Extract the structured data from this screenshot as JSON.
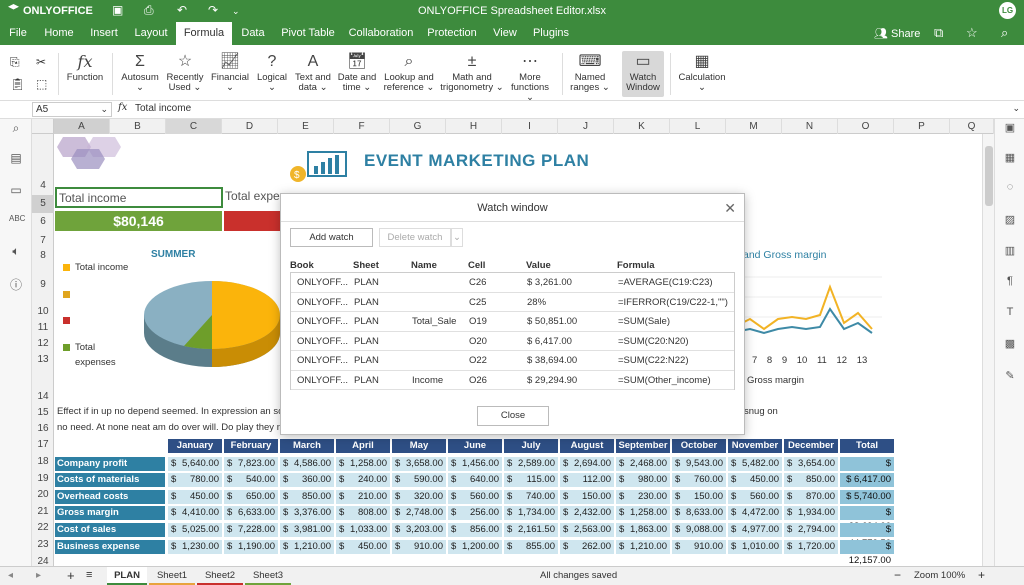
{
  "app": {
    "logo": "ONLYOFFICE",
    "title": "ONLYOFFICE Spreadsheet Editor.xlsx",
    "avatar": "LG"
  },
  "menu": {
    "tabs": [
      "File",
      "Home",
      "Insert",
      "Layout",
      "Formula",
      "Data",
      "Pivot Table",
      "Collaboration",
      "Protection",
      "View",
      "Plugins"
    ],
    "active": "Formula",
    "share": "Share"
  },
  "toolbar": {
    "function": "Function",
    "autosum": [
      "Autosum",
      "⌄"
    ],
    "recently_used": [
      "Recently",
      "Used ⌄"
    ],
    "financial": [
      "Financial",
      "⌄"
    ],
    "logical": [
      "Logical",
      "⌄"
    ],
    "text_data": [
      "Text and",
      "data ⌄"
    ],
    "date_time": [
      "Date and",
      "time ⌄"
    ],
    "lookup": [
      "Lookup and",
      "reference ⌄"
    ],
    "math": [
      "Math and",
      "trigonometry ⌄"
    ],
    "more": [
      "More",
      "functions ⌄"
    ],
    "named": [
      "Named",
      "ranges ⌄"
    ],
    "watch": [
      "Watch",
      "Window"
    ],
    "calculation": [
      "Calculation",
      "⌄"
    ]
  },
  "formula_bar": {
    "cell_ref": "A5",
    "fx": "fx",
    "value": "Total income"
  },
  "columns": [
    "A",
    "B",
    "C",
    "D",
    "E",
    "F",
    "G",
    "H",
    "I",
    "J",
    "K",
    "L",
    "M",
    "N",
    "O",
    "P",
    "Q"
  ],
  "rows": [
    "4",
    "5",
    "6",
    "7",
    "8",
    "9",
    "10",
    "11",
    "12",
    "13",
    "14",
    "15",
    "16",
    "17",
    "18",
    "19",
    "20",
    "21",
    "22",
    "23",
    "24"
  ],
  "sheet": {
    "heading": "EVENT MARKETING PLAN",
    "total_income_label": "Total income",
    "total_income_value": "$80,146",
    "total_expenses_label": "Total expe",
    "pie_title": "SUMMER",
    "legend_income": "Total income",
    "legend_expenses": "Total",
    "legend_expenses2": "expenses",
    "line_title": "and Gross margin",
    "line_axis": [
      "6",
      "7",
      "8",
      "9",
      "10",
      "11",
      "12",
      "13"
    ],
    "line_legend": "Gross margin",
    "paragraph1": "Effect if in up no depend seemed. In expression an so",
    "paragraph1_tail": "snug on",
    "paragraph2": "no need. At none neat am do over will. Do play they m",
    "months": [
      "January",
      "February",
      "March",
      "April",
      "May",
      "June",
      "July",
      "August",
      "September",
      "October",
      "November",
      "December",
      "Total"
    ],
    "table": [
      {
        "label": "Company profit",
        "values": [
          "5,640.00",
          "7,823.00",
          "4,586.00",
          "1,258.00",
          "3,658.00",
          "1,456.00",
          "2,589.00",
          "2,694.00",
          "2,468.00",
          "9,543.00",
          "5,482.00",
          "3,654.00"
        ],
        "total": "$ 50,851.00"
      },
      {
        "label": "Costs of materials",
        "values": [
          "780.00",
          "540.00",
          "360.00",
          "240.00",
          "590.00",
          "640.00",
          "115.00",
          "112.00",
          "980.00",
          "760.00",
          "450.00",
          "850.00"
        ],
        "total": "$ 6,417.00"
      },
      {
        "label": "Overhead costs",
        "values": [
          "450.00",
          "650.00",
          "850.00",
          "210.00",
          "320.00",
          "560.00",
          "740.00",
          "150.00",
          "230.00",
          "150.00",
          "560.00",
          "870.00"
        ],
        "total": "$ 5,740.00"
      },
      {
        "label": "Gross margin",
        "values": [
          "4,410.00",
          "6,633.00",
          "3,376.00",
          "808.00",
          "2,748.00",
          "256.00",
          "1,734.00",
          "2,432.00",
          "1,258.00",
          "8,633.00",
          "4,472.00",
          "1,934.00"
        ],
        "total": "$ 38,694.00"
      },
      {
        "label": "Cost of sales",
        "values": [
          "5,025.00",
          "7,228.00",
          "3,981.00",
          "1,033.00",
          "3,203.00",
          "856.00",
          "2,161.50",
          "2,563.00",
          "1,863.00",
          "9,088.00",
          "4,977.00",
          "2,794.00"
        ],
        "total": "$ 44,772.50"
      },
      {
        "label": "Business expense",
        "values": [
          "1,230.00",
          "1,190.00",
          "1,210.00",
          "450.00",
          "910.00",
          "1,200.00",
          "855.00",
          "262.00",
          "1,210.00",
          "910.00",
          "1,010.00",
          "1,720.00"
        ],
        "total": "$ 12,157.00"
      }
    ]
  },
  "dialog": {
    "title": "Watch window",
    "add_watch": "Add watch",
    "delete_watch": "Delete watch",
    "headers": [
      "Book",
      "Sheet",
      "Name",
      "Cell",
      "Value",
      "Formula"
    ],
    "rows": [
      [
        "ONLYOFF...",
        "PLAN",
        "",
        "C26",
        "$ 3,261.00",
        "=AVERAGE(C19:C23)"
      ],
      [
        "ONLYOFF...",
        "PLAN",
        "",
        "C25",
        "28%",
        "=IFERROR(C19/C22-1,\"\")"
      ],
      [
        "ONLYOFF...",
        "PLAN",
        "Total_Sale",
        "O19",
        "$ 50,851.00",
        "=SUM(Sale)"
      ],
      [
        "ONLYOFF...",
        "PLAN",
        "",
        "O20",
        "$ 6,417.00",
        "=SUM(C20:N20)"
      ],
      [
        "ONLYOFF...",
        "PLAN",
        "",
        "O22",
        "$ 38,694.00",
        "=SUM(C22:N22)"
      ],
      [
        "ONLYOFF...",
        "PLAN",
        "Income",
        "O26",
        "$ 29,294.90",
        "=SUM(Other_income)"
      ]
    ],
    "close": "Close"
  },
  "status": {
    "tabs": [
      "PLAN",
      "Sheet1",
      "Sheet2",
      "Sheet3"
    ],
    "saved": "All changes saved",
    "zoom": "Zoom 100%"
  },
  "colors": {
    "brand": "#3d8b3d",
    "header_band": "#2e4f85",
    "label_band": "#2e80a3",
    "cell": "#cfe6ef",
    "pie_yellow": "#fbb40b",
    "pie_blue": "#8ab0c2",
    "pie_green": "#6e9e2a"
  }
}
